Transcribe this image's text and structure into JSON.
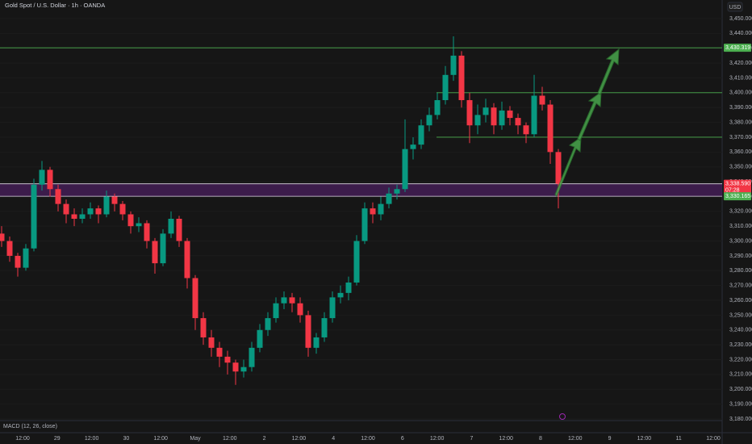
{
  "chart_data": {
    "type": "candlestick",
    "title": "Gold Spot / U.S. Dollar · 1h · OANDA",
    "currency": "USD",
    "indicator": "MACD (12, 26, close)",
    "up_color": "#089981",
    "down_color": "#f23645",
    "ylim": [
      3180,
      3450
    ],
    "yticks": [
      {
        "value": 3180,
        "label": "3,180.000"
      },
      {
        "value": 3190,
        "label": "3,190.000"
      },
      {
        "value": 3200,
        "label": "3,200.000"
      },
      {
        "value": 3210,
        "label": "3,210.000"
      },
      {
        "value": 3220,
        "label": "3,220.000"
      },
      {
        "value": 3230,
        "label": "3,230.000"
      },
      {
        "value": 3240,
        "label": "3,240.000"
      },
      {
        "value": 3250,
        "label": "3,250.000"
      },
      {
        "value": 3260,
        "label": "3,260.000"
      },
      {
        "value": 3270,
        "label": "3,270.000"
      },
      {
        "value": 3280,
        "label": "3,280.000"
      },
      {
        "value": 3290,
        "label": "3,290.000"
      },
      {
        "value": 3300,
        "label": "3,300.000"
      },
      {
        "value": 3310,
        "label": "3,310.000"
      },
      {
        "value": 3320,
        "label": "3,320.000"
      },
      {
        "value": 3330,
        "label": "3,330.000"
      },
      {
        "value": 3340,
        "label": "3,340.000"
      },
      {
        "value": 3350,
        "label": "3,350.000"
      },
      {
        "value": 3360,
        "label": "3,360.000"
      },
      {
        "value": 3370,
        "label": "3,370.000"
      },
      {
        "value": 3380,
        "label": "3,380.000"
      },
      {
        "value": 3390,
        "label": "3,390.000"
      },
      {
        "value": 3400,
        "label": "3,400.000"
      },
      {
        "value": 3410,
        "label": "3,410.000"
      },
      {
        "value": 3420,
        "label": "3,420.000"
      },
      {
        "value": 3430,
        "label": "3,430.000"
      },
      {
        "value": 3440,
        "label": "3,440.000"
      },
      {
        "value": 3450,
        "label": "3,450.000"
      }
    ],
    "x_labels": [
      "12:00",
      "29",
      "12:00",
      "30",
      "12:00",
      "May",
      "12:00",
      "2",
      "12:00",
      "4",
      "12:00",
      "6",
      "12:00",
      "7",
      "12:00",
      "8",
      "12:00",
      "9",
      "12:00",
      "11",
      "12:00"
    ],
    "candles": [
      [
        3305,
        3310,
        3296,
        3300
      ],
      [
        3300,
        3303,
        3286,
        3290
      ],
      [
        3290,
        3292,
        3276,
        3282
      ],
      [
        3282,
        3298,
        3280,
        3295
      ],
      [
        3295,
        3342,
        3293,
        3338
      ],
      [
        3338,
        3354,
        3334,
        3348
      ],
      [
        3348,
        3350,
        3330,
        3335
      ],
      [
        3335,
        3338,
        3320,
        3325
      ],
      [
        3325,
        3328,
        3312,
        3318
      ],
      [
        3318,
        3322,
        3310,
        3315
      ],
      [
        3315,
        3322,
        3312,
        3318
      ],
      [
        3318,
        3326,
        3315,
        3322
      ],
      [
        3322,
        3324,
        3312,
        3318
      ],
      [
        3318,
        3334,
        3316,
        3330
      ],
      [
        3330,
        3332,
        3320,
        3325
      ],
      [
        3325,
        3327,
        3314,
        3318
      ],
      [
        3318,
        3320,
        3305,
        3310
      ],
      [
        3310,
        3316,
        3306,
        3312
      ],
      [
        3312,
        3314,
        3295,
        3300
      ],
      [
        3300,
        3302,
        3278,
        3285
      ],
      [
        3285,
        3308,
        3283,
        3305
      ],
      [
        3305,
        3320,
        3302,
        3315
      ],
      [
        3315,
        3317,
        3296,
        3300
      ],
      [
        3300,
        3302,
        3268,
        3275
      ],
      [
        3275,
        3277,
        3240,
        3248
      ],
      [
        3248,
        3252,
        3230,
        3235
      ],
      [
        3235,
        3240,
        3222,
        3228
      ],
      [
        3228,
        3232,
        3215,
        3222
      ],
      [
        3222,
        3226,
        3210,
        3218
      ],
      [
        3218,
        3220,
        3203,
        3212
      ],
      [
        3212,
        3220,
        3208,
        3215
      ],
      [
        3215,
        3232,
        3212,
        3228
      ],
      [
        3228,
        3244,
        3225,
        3240
      ],
      [
        3240,
        3252,
        3236,
        3248
      ],
      [
        3248,
        3262,
        3245,
        3258
      ],
      [
        3258,
        3266,
        3254,
        3262
      ],
      [
        3262,
        3265,
        3252,
        3258
      ],
      [
        3258,
        3262,
        3245,
        3250
      ],
      [
        3250,
        3253,
        3222,
        3228
      ],
      [
        3228,
        3238,
        3224,
        3235
      ],
      [
        3235,
        3252,
        3232,
        3248
      ],
      [
        3248,
        3266,
        3245,
        3262
      ],
      [
        3262,
        3270,
        3258,
        3265
      ],
      [
        3265,
        3276,
        3260,
        3272
      ],
      [
        3272,
        3304,
        3270,
        3300
      ],
      [
        3300,
        3326,
        3298,
        3322
      ],
      [
        3322,
        3326,
        3312,
        3318
      ],
      [
        3318,
        3330,
        3314,
        3325
      ],
      [
        3325,
        3336,
        3322,
        3332
      ],
      [
        3332,
        3338,
        3328,
        3335
      ],
      [
        3335,
        3382,
        3333,
        3362
      ],
      [
        3362,
        3370,
        3355,
        3365
      ],
      [
        3365,
        3382,
        3362,
        3378
      ],
      [
        3378,
        3390,
        3374,
        3385
      ],
      [
        3385,
        3400,
        3382,
        3395
      ],
      [
        3395,
        3418,
        3392,
        3412
      ],
      [
        3412,
        3438,
        3408,
        3425
      ],
      [
        3425,
        3428,
        3390,
        3395
      ],
      [
        3395,
        3400,
        3366,
        3378
      ],
      [
        3378,
        3392,
        3372,
        3385
      ],
      [
        3385,
        3396,
        3380,
        3390
      ],
      [
        3390,
        3393,
        3372,
        3378
      ],
      [
        3378,
        3394,
        3375,
        3388
      ],
      [
        3388,
        3391,
        3378,
        3383
      ],
      [
        3383,
        3386,
        3372,
        3378
      ],
      [
        3378,
        3380,
        3366,
        3372
      ],
      [
        3372,
        3412,
        3370,
        3398
      ],
      [
        3398,
        3404,
        3388,
        3392
      ],
      [
        3392,
        3395,
        3352,
        3360
      ],
      [
        3360,
        3362,
        3322,
        3338.59
      ]
    ],
    "resistance": {
      "value": 3430.319,
      "label": "3,430.319"
    },
    "zone": {
      "top": {
        "value": 3338.59,
        "label": "3,338.590"
      },
      "bottom": {
        "value": 3330.165,
        "label": "3,330.165"
      }
    },
    "countdown": "07:28",
    "targets": [
      3400,
      3370
    ]
  }
}
